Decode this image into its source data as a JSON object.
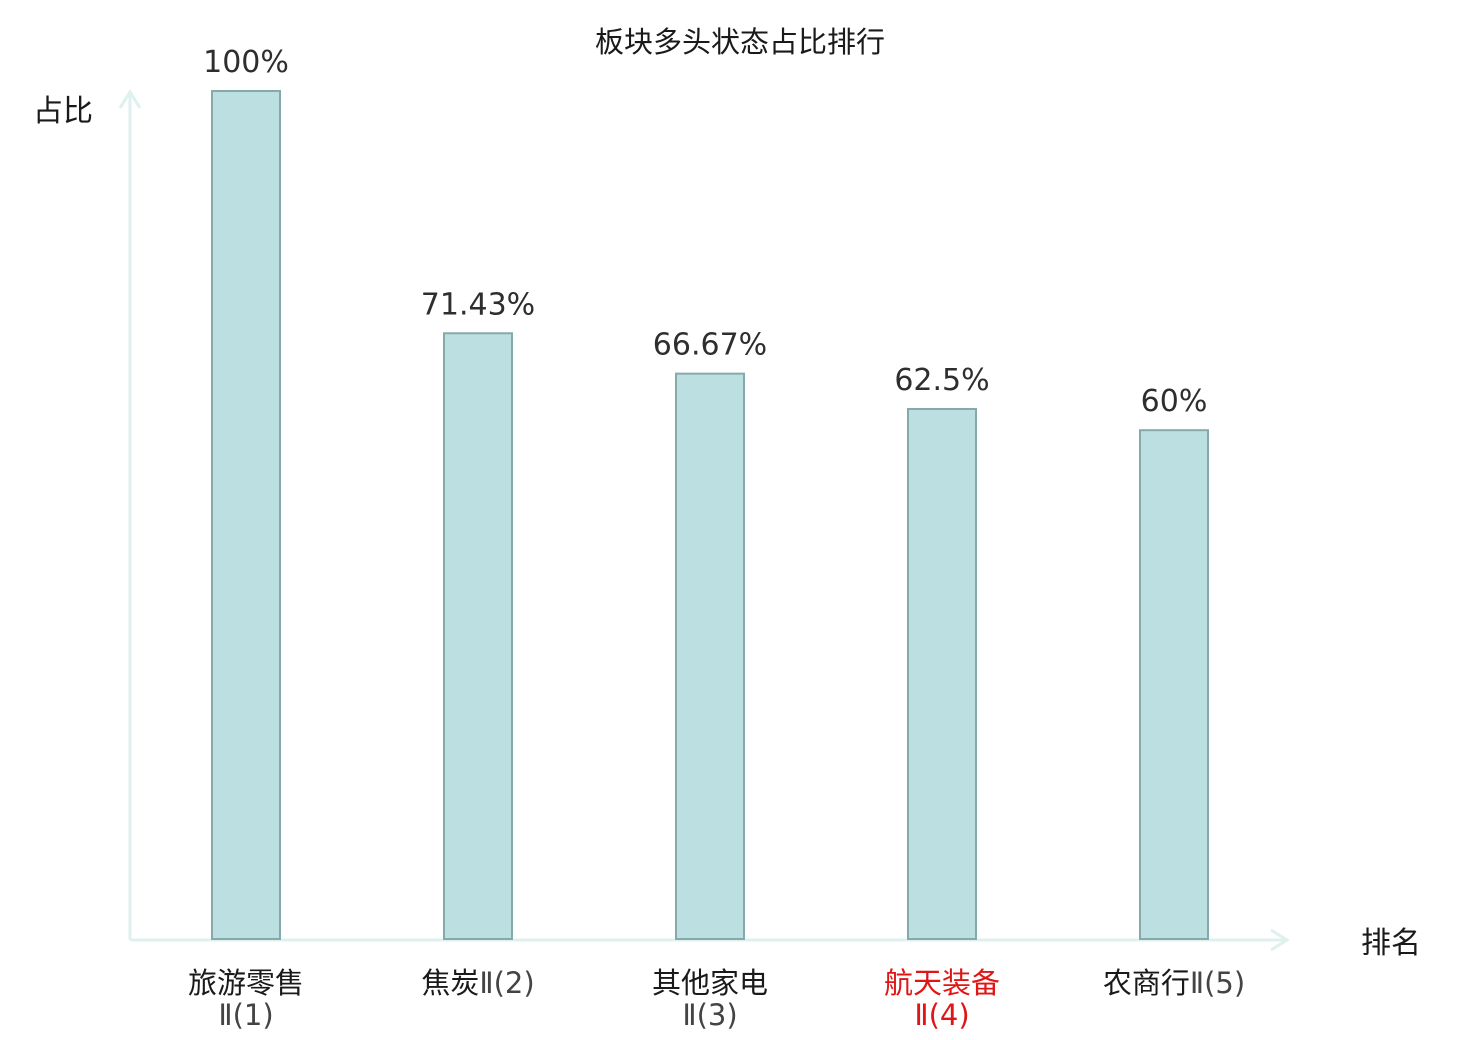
{
  "chart_data": {
    "type": "bar",
    "title": "板块多头状态占比排行",
    "xlabel": "排名",
    "ylabel": "占比",
    "ylim": [
      0,
      100
    ],
    "grid": false,
    "categories": [
      "旅游零售Ⅱ(1)",
      "焦炭Ⅱ(2)",
      "其他家电Ⅱ(3)",
      "航天装备Ⅱ(4)",
      "农商行Ⅱ(5)"
    ],
    "category_names": [
      "旅游零售",
      "焦炭",
      "其他家电",
      "航天装备",
      "农商行"
    ],
    "category_suffixes": [
      "Ⅱ(1)",
      "Ⅱ(2)",
      "Ⅱ(3)",
      "Ⅱ(4)",
      "Ⅱ(5)"
    ],
    "values": [
      100,
      71.43,
      66.67,
      62.5,
      60
    ],
    "value_labels": [
      "100%",
      "71.43%",
      "66.67%",
      "62.5%",
      "60%"
    ],
    "highlight_index": 3,
    "colors": {
      "bar_fill": "#bce0e1",
      "bar_stroke": "#86a9a9",
      "axis": "#dff1ee",
      "highlight_text": "#e01515",
      "text": "#1a1a1a"
    }
  }
}
